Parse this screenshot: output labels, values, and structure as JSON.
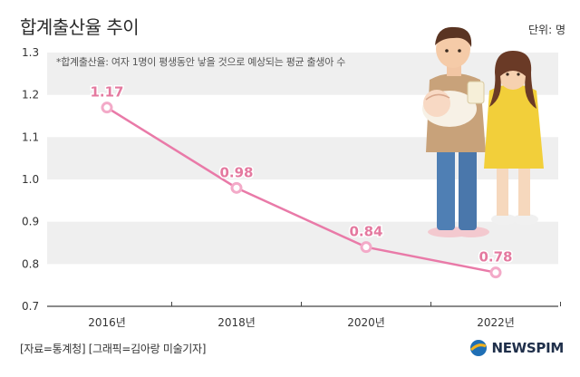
{
  "title": "합계출산율 추이",
  "unit_label": "단위: 명",
  "note": "*합계출산율: 여자 1명이 평생동안 낳을 것으로 예상되는 평균 출생아 수",
  "source": "[자료=통계청] [그래픽=김아랑 미술기자]",
  "logo_text": "NEWSPIM",
  "colors": {
    "line": "#e97aa8",
    "point": "#f3aac8",
    "label": "#e4799f",
    "band": "#efefef",
    "axis": "#444444",
    "logo_mark": "#1f6fb5"
  },
  "chart_data": {
    "type": "line",
    "title": "합계출산율 추이",
    "xlabel": "",
    "ylabel": "",
    "categories": [
      "2016년",
      "2018년",
      "2020년",
      "2022년"
    ],
    "series": [
      {
        "name": "합계출산율",
        "values": [
          1.17,
          0.98,
          0.84,
          0.78
        ]
      }
    ],
    "data_labels": [
      "1.17",
      "0.98",
      "0.84",
      "0.78"
    ],
    "ylim": [
      0.7,
      1.3
    ],
    "yticks": [
      "0.7",
      "0.8",
      "0.9",
      "1.0",
      "1.1",
      "1.2",
      "1.3"
    ],
    "grid": "alternating horizontal bands",
    "legend": "none"
  }
}
